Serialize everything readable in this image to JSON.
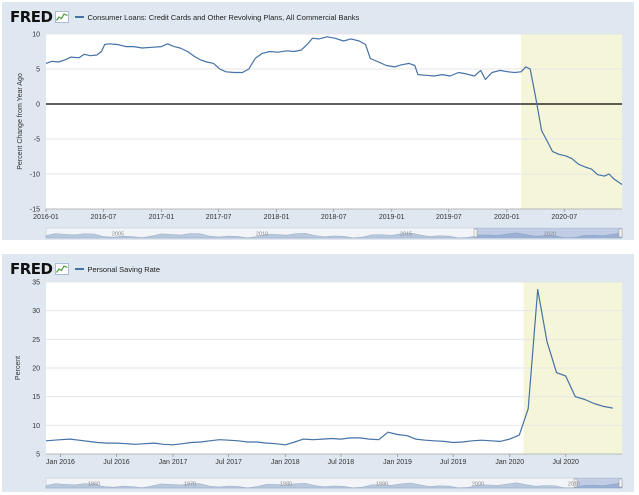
{
  "panels": [
    {
      "logo": "FRED",
      "title": "Consumer Loans: Credit Cards and Other Revolving Plans, All Commercial Banks",
      "chart_data": {
        "type": "line",
        "title": "Consumer Loans: Credit Cards and Other Revolving Plans, All Commercial Banks",
        "ylabel": "Percent Change from Year Ago",
        "xlim": [
          "2016-01-01",
          "2020-12-31"
        ],
        "ylim": [
          -15,
          10
        ],
        "yticks": [
          10,
          5,
          0,
          -5,
          -10,
          -15
        ],
        "xticks": [
          {
            "date": "2016-01-01",
            "label": "2016-01"
          },
          {
            "date": "2016-07-01",
            "label": "2016-07"
          },
          {
            "date": "2017-01-01",
            "label": "2017-01"
          },
          {
            "date": "2017-07-01",
            "label": "2017-07"
          },
          {
            "date": "2018-01-01",
            "label": "2018-01"
          },
          {
            "date": "2018-07-01",
            "label": "2018-07"
          },
          {
            "date": "2019-01-01",
            "label": "2019-01"
          },
          {
            "date": "2019-07-01",
            "label": "2019-07"
          },
          {
            "date": "2020-01-01",
            "label": "2020-01"
          },
          {
            "date": "2020-07-01",
            "label": "2020-07"
          }
        ],
        "recession": [
          "2020-02-15",
          "2020-12-31"
        ],
        "zero_line": true,
        "series": [
          {
            "color": "#4572a7",
            "points": [
              [
                "2016-01-01",
                5.8
              ],
              [
                "2016-01-20",
                6.1
              ],
              [
                "2016-02-10",
                6.0
              ],
              [
                "2016-03-01",
                6.3
              ],
              [
                "2016-03-20",
                6.7
              ],
              [
                "2016-04-15",
                6.6
              ],
              [
                "2016-05-01",
                7.1
              ],
              [
                "2016-05-20",
                6.9
              ],
              [
                "2016-06-10",
                7.0
              ],
              [
                "2016-06-25",
                7.5
              ],
              [
                "2016-07-05",
                8.5
              ],
              [
                "2016-07-20",
                8.6
              ],
              [
                "2016-08-15",
                8.5
              ],
              [
                "2016-09-10",
                8.2
              ],
              [
                "2016-10-05",
                8.2
              ],
              [
                "2016-11-01",
                8.0
              ],
              [
                "2016-12-01",
                8.1
              ],
              [
                "2017-01-01",
                8.2
              ],
              [
                "2017-01-20",
                8.6
              ],
              [
                "2017-02-10",
                8.2
              ],
              [
                "2017-03-01",
                8.0
              ],
              [
                "2017-03-25",
                7.5
              ],
              [
                "2017-04-15",
                6.8
              ],
              [
                "2017-05-05",
                6.3
              ],
              [
                "2017-05-25",
                6.0
              ],
              [
                "2017-06-15",
                5.8
              ],
              [
                "2017-07-05",
                5.0
              ],
              [
                "2017-07-25",
                4.6
              ],
              [
                "2017-08-20",
                4.5
              ],
              [
                "2017-09-15",
                4.5
              ],
              [
                "2017-10-05",
                5.0
              ],
              [
                "2017-10-25",
                6.5
              ],
              [
                "2017-11-15",
                7.2
              ],
              [
                "2017-12-10",
                7.5
              ],
              [
                "2018-01-05",
                7.4
              ],
              [
                "2018-02-01",
                7.6
              ],
              [
                "2018-02-25",
                7.5
              ],
              [
                "2018-03-20",
                7.7
              ],
              [
                "2018-04-10",
                8.6
              ],
              [
                "2018-04-25",
                9.4
              ],
              [
                "2018-05-15",
                9.3
              ],
              [
                "2018-06-10",
                9.6
              ],
              [
                "2018-07-05",
                9.4
              ],
              [
                "2018-08-01",
                9.0
              ],
              [
                "2018-08-25",
                9.3
              ],
              [
                "2018-09-20",
                9.0
              ],
              [
                "2018-10-10",
                8.5
              ],
              [
                "2018-10-25",
                6.5
              ],
              [
                "2018-11-20",
                6.0
              ],
              [
                "2018-12-15",
                5.5
              ],
              [
                "2019-01-10",
                5.3
              ],
              [
                "2019-02-01",
                5.6
              ],
              [
                "2019-02-25",
                5.8
              ],
              [
                "2019-03-15",
                5.5
              ],
              [
                "2019-03-25",
                4.2
              ],
              [
                "2019-04-20",
                4.1
              ],
              [
                "2019-05-15",
                4.0
              ],
              [
                "2019-06-10",
                4.2
              ],
              [
                "2019-07-05",
                4.0
              ],
              [
                "2019-08-01",
                4.5
              ],
              [
                "2019-08-25",
                4.3
              ],
              [
                "2019-09-20",
                4.0
              ],
              [
                "2019-10-10",
                4.8
              ],
              [
                "2019-10-25",
                3.5
              ],
              [
                "2019-11-15",
                4.5
              ],
              [
                "2019-12-10",
                4.8
              ],
              [
                "2020-01-05",
                4.6
              ],
              [
                "2020-01-25",
                4.5
              ],
              [
                "2020-02-15",
                4.6
              ],
              [
                "2020-03-01",
                5.3
              ],
              [
                "2020-03-15",
                5.0
              ],
              [
                "2020-04-01",
                1.0
              ],
              [
                "2020-04-20",
                -3.8
              ],
              [
                "2020-05-10",
                -5.5
              ],
              [
                "2020-05-25",
                -6.8
              ],
              [
                "2020-06-15",
                -7.2
              ],
              [
                "2020-07-05",
                -7.4
              ],
              [
                "2020-07-25",
                -7.8
              ],
              [
                "2020-08-15",
                -8.6
              ],
              [
                "2020-09-05",
                -9.0
              ],
              [
                "2020-09-25",
                -9.3
              ],
              [
                "2020-10-15",
                -10.1
              ],
              [
                "2020-11-05",
                -10.3
              ],
              [
                "2020-11-20",
                -10.0
              ],
              [
                "2020-12-05",
                -10.7
              ],
              [
                "2020-12-31",
                -11.5
              ]
            ]
          }
        ]
      },
      "navigator_labels": [
        "2005",
        "2010",
        "2015",
        "2020"
      ]
    },
    {
      "logo": "FRED",
      "title": "Personal Saving Rate",
      "chart_data": {
        "type": "line",
        "title": "Personal Saving Rate",
        "ylabel": "Percent",
        "xlim": [
          "2015-11-15",
          "2020-12-31"
        ],
        "ylim": [
          5,
          35
        ],
        "yticks": [
          35,
          30,
          25,
          20,
          15,
          10,
          5
        ],
        "xticks": [
          {
            "date": "2016-01-01",
            "label": "Jan 2016"
          },
          {
            "date": "2016-07-01",
            "label": "Jul 2016"
          },
          {
            "date": "2017-01-01",
            "label": "Jan 2017"
          },
          {
            "date": "2017-07-01",
            "label": "Jul 2017"
          },
          {
            "date": "2018-01-01",
            "label": "Jan 2018"
          },
          {
            "date": "2018-07-01",
            "label": "Jul 2018"
          },
          {
            "date": "2019-01-01",
            "label": "Jan 2019"
          },
          {
            "date": "2019-07-01",
            "label": "Jul 2019"
          },
          {
            "date": "2020-01-01",
            "label": "Jan 2020"
          },
          {
            "date": "2020-07-01",
            "label": "Jul 2020"
          }
        ],
        "recession": [
          "2020-02-15",
          "2020-12-31"
        ],
        "zero_line": false,
        "series": [
          {
            "color": "#4572a7",
            "points": [
              [
                "2015-11-15",
                7.3
              ],
              [
                "2016-01-01",
                7.5
              ],
              [
                "2016-02-01",
                7.6
              ],
              [
                "2016-03-01",
                7.4
              ],
              [
                "2016-04-01",
                7.2
              ],
              [
                "2016-05-01",
                7.0
              ],
              [
                "2016-06-01",
                6.9
              ],
              [
                "2016-07-01",
                6.9
              ],
              [
                "2016-08-01",
                6.8
              ],
              [
                "2016-09-01",
                6.7
              ],
              [
                "2016-10-01",
                6.8
              ],
              [
                "2016-11-01",
                6.9
              ],
              [
                "2016-12-01",
                6.7
              ],
              [
                "2017-01-01",
                6.6
              ],
              [
                "2017-02-01",
                6.8
              ],
              [
                "2017-03-01",
                7.0
              ],
              [
                "2017-04-01",
                7.1
              ],
              [
                "2017-05-01",
                7.3
              ],
              [
                "2017-06-01",
                7.5
              ],
              [
                "2017-07-01",
                7.4
              ],
              [
                "2017-08-01",
                7.3
              ],
              [
                "2017-09-01",
                7.1
              ],
              [
                "2017-10-01",
                7.1
              ],
              [
                "2017-11-01",
                6.9
              ],
              [
                "2017-12-01",
                6.8
              ],
              [
                "2018-01-01",
                6.6
              ],
              [
                "2018-02-01",
                7.1
              ],
              [
                "2018-03-01",
                7.6
              ],
              [
                "2018-04-01",
                7.5
              ],
              [
                "2018-05-01",
                7.6
              ],
              [
                "2018-06-01",
                7.7
              ],
              [
                "2018-07-01",
                7.6
              ],
              [
                "2018-08-01",
                7.8
              ],
              [
                "2018-09-01",
                7.8
              ],
              [
                "2018-10-01",
                7.6
              ],
              [
                "2018-11-01",
                7.5
              ],
              [
                "2018-12-01",
                8.8
              ],
              [
                "2019-01-01",
                8.4
              ],
              [
                "2019-02-01",
                8.2
              ],
              [
                "2019-03-01",
                7.6
              ],
              [
                "2019-04-01",
                7.4
              ],
              [
                "2019-05-01",
                7.3
              ],
              [
                "2019-06-01",
                7.2
              ],
              [
                "2019-07-01",
                7.0
              ],
              [
                "2019-08-01",
                7.1
              ],
              [
                "2019-09-01",
                7.3
              ],
              [
                "2019-10-01",
                7.4
              ],
              [
                "2019-11-01",
                7.3
              ],
              [
                "2019-12-01",
                7.2
              ],
              [
                "2020-01-01",
                7.6
              ],
              [
                "2020-02-01",
                8.3
              ],
              [
                "2020-03-01",
                12.9
              ],
              [
                "2020-04-01",
                33.7
              ],
              [
                "2020-05-01",
                24.6
              ],
              [
                "2020-06-01",
                19.2
              ],
              [
                "2020-07-01",
                18.6
              ],
              [
                "2020-08-01",
                15.0
              ],
              [
                "2020-09-01",
                14.5
              ],
              [
                "2020-10-01",
                13.8
              ],
              [
                "2020-11-01",
                13.3
              ],
              [
                "2020-12-01",
                13.0
              ]
            ]
          }
        ]
      },
      "navigator_labels": [
        "1960",
        "1970",
        "1980",
        "1990",
        "2000",
        "2010"
      ]
    }
  ]
}
